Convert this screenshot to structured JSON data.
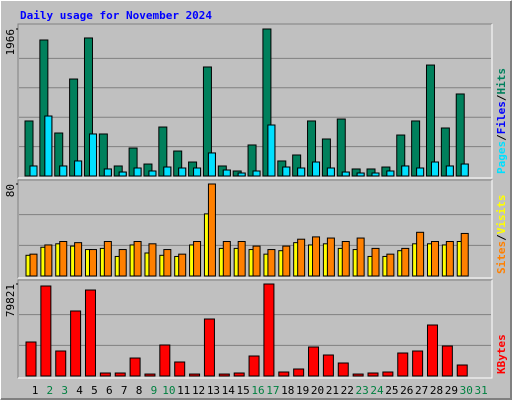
{
  "chart_data": [
    {
      "type": "bar",
      "title": "Daily usage for November 2024",
      "categories": [
        "1",
        "2",
        "3",
        "4",
        "5",
        "6",
        "7",
        "8",
        "9",
        "10",
        "11",
        "12",
        "13",
        "14",
        "15",
        "16",
        "17",
        "18",
        "19",
        "20",
        "21",
        "22",
        "23",
        "24",
        "25",
        "26",
        "27",
        "28",
        "29",
        "30",
        "31"
      ],
      "category_colors": [
        "#000000",
        "#008040",
        "#008040",
        "#000000",
        "#000000",
        "#000000",
        "#000000",
        "#000000",
        "#008040",
        "#008040",
        "#000000",
        "#000000",
        "#000000",
        "#000000",
        "#000000",
        "#008040",
        "#008040",
        "#000000",
        "#000000",
        "#000000",
        "#000000",
        "#000000",
        "#008040",
        "#008040",
        "#000000",
        "#000000",
        "#000000",
        "#000000",
        "#000000",
        "#008040",
        "#008040"
      ],
      "separator": "/",
      "series": [
        {
          "name": "Hits",
          "color": "#00805c",
          "values": [
            736,
            1819,
            575,
            1297,
            1846,
            562,
            134,
            374,
            160,
            655,
            334,
            187,
            1458,
            134,
            67,
            415,
            1966,
            201,
            281,
            736,
            495,
            762,
            94,
            94,
            120,
            548,
            736,
            1484,
            642,
            1097,
            0
          ]
        },
        {
          "name": "Files",
          "color": "#0000ff",
          "values": [
            134,
            802,
            134,
            201,
            562,
            94,
            53,
            107,
            67,
            120,
            107,
            107,
            308,
            80,
            40,
            67,
            682,
            120,
            107,
            187,
            107,
            53,
            40,
            40,
            67,
            134,
            107,
            187,
            134,
            160,
            0
          ]
        },
        {
          "name": "Pages",
          "color": "#00e0ff",
          "values": [
            134,
            802,
            134,
            201,
            562,
            94,
            53,
            107,
            67,
            120,
            107,
            107,
            308,
            80,
            40,
            67,
            682,
            120,
            107,
            187,
            107,
            53,
            40,
            40,
            67,
            134,
            107,
            187,
            134,
            160,
            0
          ]
        }
      ],
      "ylim": [
        0,
        1966
      ],
      "yticks": [
        1966
      ]
    },
    {
      "type": "bar",
      "series": [
        {
          "name": "Visits",
          "color": "#ffff00",
          "values": [
            18,
            25,
            28,
            26,
            23,
            24,
            17,
            27,
            20,
            18,
            17,
            27,
            54,
            24,
            24,
            23,
            19,
            22,
            29,
            27,
            28,
            24,
            23,
            17,
            17,
            22,
            28,
            28,
            27,
            30,
            0
          ]
        },
        {
          "name": "Sites",
          "color": "#ff8000",
          "values": [
            19,
            27,
            30,
            29,
            23,
            30,
            23,
            30,
            28,
            23,
            19,
            30,
            80,
            30,
            30,
            26,
            23,
            26,
            32,
            34,
            33,
            30,
            33,
            24,
            19,
            24,
            38,
            30,
            30,
            37,
            0
          ]
        }
      ],
      "ylim": [
        0,
        80
      ],
      "yticks": [
        80
      ]
    },
    {
      "type": "bar",
      "series": [
        {
          "name": "KBytes",
          "color": "#ff0000",
          "values": [
            29500,
            78084,
            21690,
            56400,
            74600,
            2600,
            2600,
            15600,
            1700,
            26900,
            12150,
            1700,
            49450,
            1700,
            2600,
            17350,
            79821,
            3470,
            6070,
            25160,
            18220,
            11280,
            1700,
            2600,
            3470,
            19950,
            21690,
            44250,
            26030,
            9540,
            0
          ]
        }
      ],
      "ylim": [
        0,
        79821
      ],
      "yticks": [
        79821
      ]
    }
  ]
}
